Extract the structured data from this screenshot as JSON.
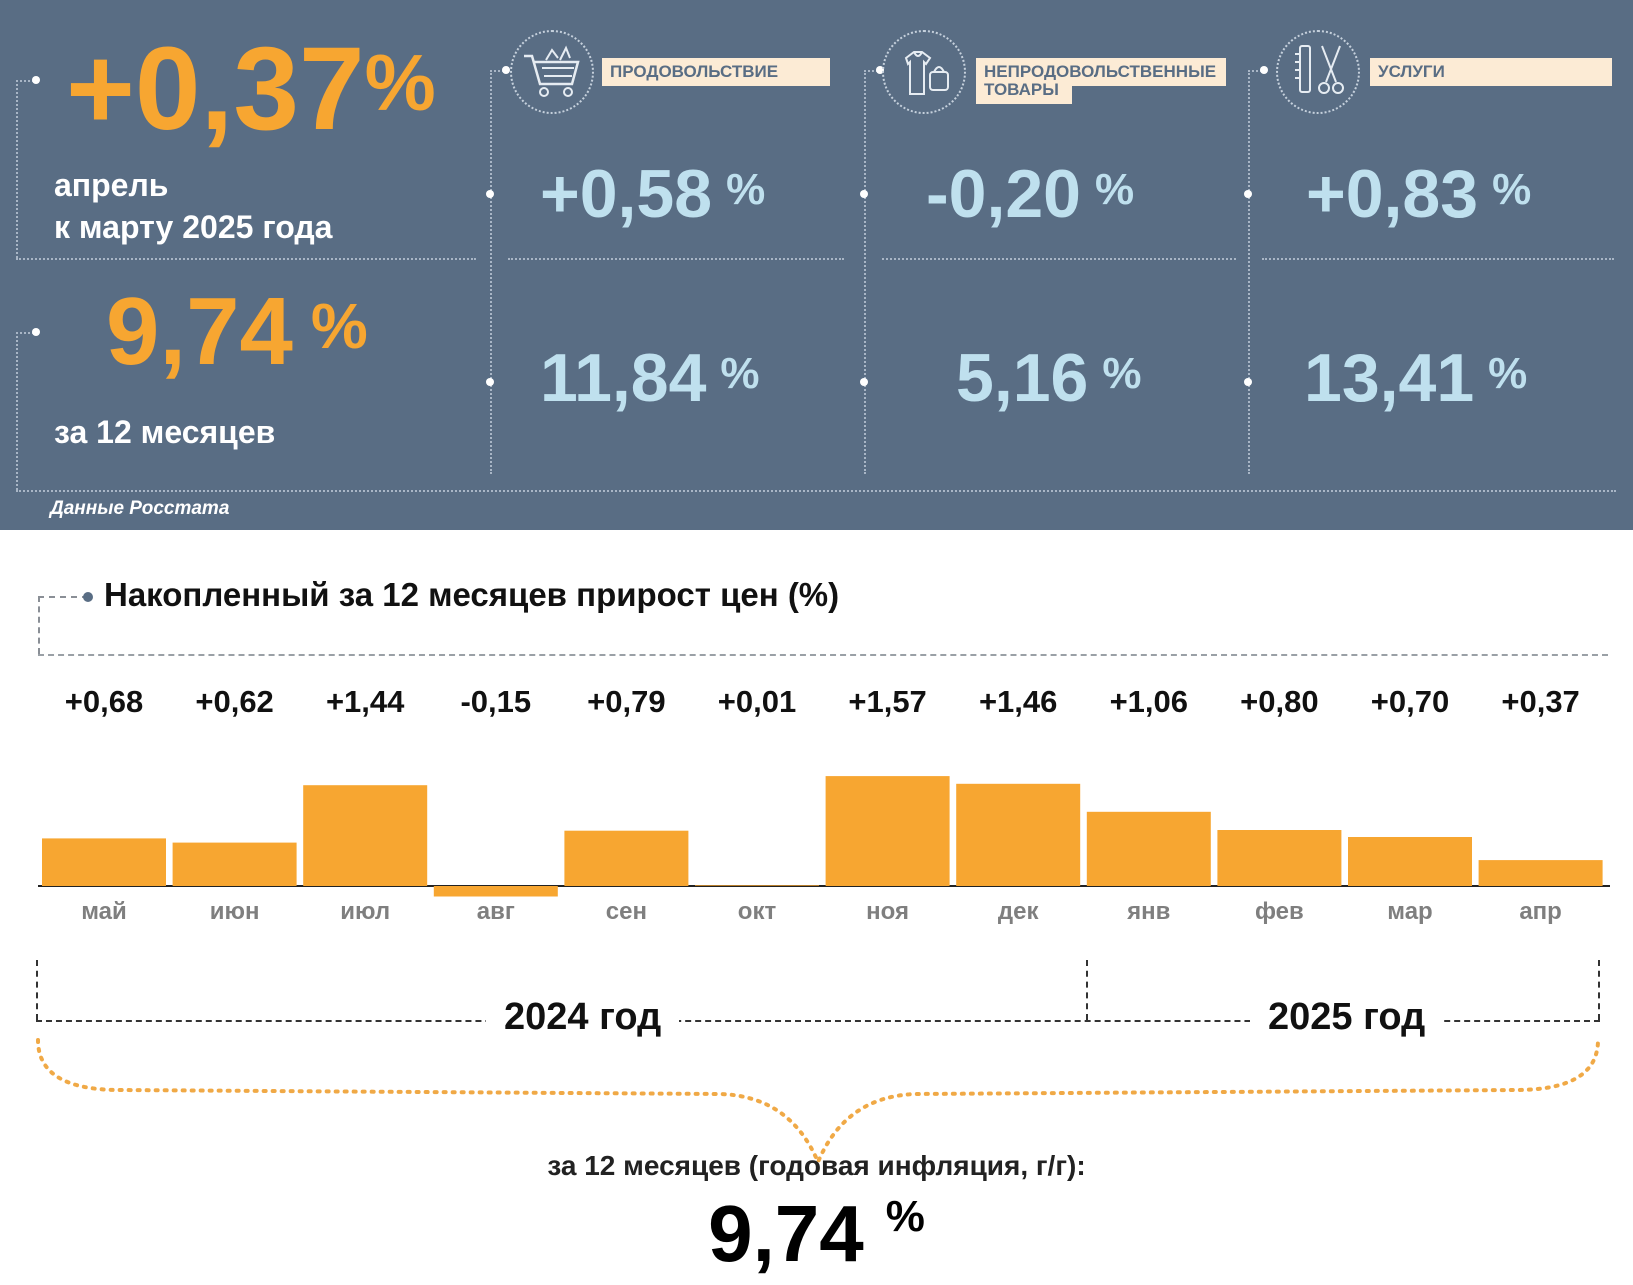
{
  "header": {
    "monthly_value": "+0,37",
    "percent_sign": "%",
    "monthly_caption_line1": "апрель",
    "monthly_caption_line2": "к марту 2025 года",
    "annual_value": "9,74",
    "annual_caption": "за 12 месяцев",
    "source": "Данные Росстата"
  },
  "categories": [
    {
      "icon": "shopping-cart-icon",
      "label_line1": "ПРОДОВОЛЬСТВИЕ",
      "label_line2": "",
      "monthly": "+0,58",
      "annual": "11,84"
    },
    {
      "icon": "clothes-bag-icon",
      "label_line1": "НЕПРОДОВОЛЬСТВЕННЫЕ",
      "label_line2": "ТОВАРЫ",
      "monthly": "-0,20",
      "annual": "5,16"
    },
    {
      "icon": "comb-scissors-icon",
      "label_line1": "УСЛУГИ",
      "label_line2": "",
      "monthly": "+0,83",
      "annual": "13,41"
    }
  ],
  "colors": {
    "panel": "#596d84",
    "accent": "#f7a631",
    "light_blue": "#bfe0ee",
    "label_bg": "#fcebd5"
  },
  "chart_data": {
    "type": "bar",
    "title": "Накопленный за 12 месяцев прирост цен (%)",
    "categories": [
      "май",
      "июн",
      "июл",
      "авг",
      "сен",
      "окт",
      "ноя",
      "дек",
      "янв",
      "фев",
      "мар",
      "апр"
    ],
    "values": [
      0.68,
      0.62,
      1.44,
      -0.15,
      0.79,
      0.01,
      1.57,
      1.46,
      1.06,
      0.8,
      0.7,
      0.37
    ],
    "data_labels": [
      "+0,68",
      "+0,62",
      "+1,44",
      "-0,15",
      "+0,79",
      "+0,01",
      "+1,57",
      "+1,46",
      "+1,06",
      "+0,80",
      "+0,70",
      "+0,37"
    ],
    "year_labels": [
      "2024 год",
      "2025 год"
    ],
    "summary_caption": "за 12 месяцев (годовая инфляция, г/г):",
    "summary_value": "9,74",
    "summary_unit": "%",
    "bar_color": "#f7a631"
  }
}
